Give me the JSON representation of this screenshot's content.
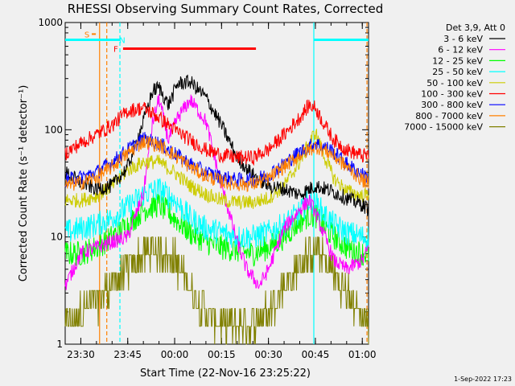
{
  "chart_data": {
    "type": "line",
    "title": "RHESSI Observing Summary Count Rates, Corrected",
    "xlabel": "Start Time (22-Nov-16 23:25:22)",
    "ylabel": "Corrected Count Rate (s⁻¹ detector⁻¹)",
    "yscale": "log",
    "ylim": [
      1,
      1000
    ],
    "xlim_minutes": [
      0,
      97
    ],
    "x_ticks": [
      {
        "label": "23:30",
        "minute": 5
      },
      {
        "label": "23:45",
        "minute": 20
      },
      {
        "label": "00:00",
        "minute": 35
      },
      {
        "label": "00:15",
        "minute": 50
      },
      {
        "label": "00:30",
        "minute": 65
      },
      {
        "label": "00:45",
        "minute": 80
      },
      {
        "label": "01:00",
        "minute": 95
      }
    ],
    "y_ticks": [
      {
        "label": "1",
        "value": 1
      },
      {
        "label": "10",
        "value": 10
      },
      {
        "label": "100",
        "value": 100
      },
      {
        "label": "1000",
        "value": 1000
      }
    ],
    "legend_title": "Det 3,9, Att 0",
    "legend_position": "right",
    "series": [
      {
        "name": "3 - 6 keV",
        "color": "#000000",
        "x": [
          0,
          5,
          10,
          15,
          20,
          25,
          28,
          30,
          33,
          36,
          40,
          45,
          50,
          55,
          60,
          65,
          70,
          75,
          80,
          85,
          90,
          95,
          97
        ],
        "y": [
          40,
          32,
          28,
          30,
          45,
          120,
          230,
          250,
          170,
          270,
          280,
          200,
          110,
          55,
          38,
          30,
          28,
          25,
          30,
          27,
          23,
          20,
          18
        ]
      },
      {
        "name": "6 - 12 keV",
        "color": "#ff00ff",
        "x": [
          0,
          5,
          10,
          15,
          20,
          25,
          28,
          30,
          33,
          36,
          40,
          45,
          50,
          55,
          58,
          62,
          65,
          70,
          75,
          78,
          80,
          83,
          86,
          90,
          95,
          97
        ],
        "y": [
          3.5,
          7,
          8,
          9,
          10,
          25,
          120,
          195,
          80,
          130,
          190,
          120,
          30,
          9,
          5,
          3.5,
          5,
          12,
          18,
          22,
          17,
          10,
          6,
          5,
          6,
          8
        ]
      },
      {
        "name": "12 - 25 keV",
        "color": "#00ff00",
        "x": [
          0,
          5,
          10,
          15,
          20,
          25,
          30,
          35,
          40,
          45,
          50,
          55,
          60,
          65,
          70,
          75,
          78,
          80,
          83,
          86,
          90,
          95,
          97
        ],
        "y": [
          7,
          7,
          8,
          10,
          13,
          18,
          20,
          15,
          11,
          9,
          8,
          7.5,
          7,
          8,
          10,
          14,
          16,
          16,
          12,
          10,
          8,
          7,
          7
        ]
      },
      {
        "name": "25 - 50 keV",
        "color": "#00ffff",
        "x": [
          0,
          5,
          10,
          15,
          20,
          25,
          30,
          35,
          40,
          45,
          50,
          55,
          60,
          65,
          70,
          75,
          78,
          80,
          83,
          86,
          90,
          95,
          97
        ],
        "y": [
          11,
          12,
          13,
          15,
          19,
          25,
          28,
          22,
          15,
          12,
          11,
          10,
          10,
          11,
          13,
          17,
          22,
          21,
          16,
          13,
          11,
          10,
          10
        ]
      },
      {
        "name": "50 - 100 keV",
        "color": "#cccc00",
        "x": [
          0,
          5,
          10,
          15,
          20,
          25,
          30,
          35,
          40,
          45,
          50,
          55,
          60,
          65,
          70,
          75,
          78,
          80,
          83,
          86,
          90,
          95,
          97
        ],
        "y": [
          22,
          22,
          24,
          30,
          42,
          50,
          50,
          40,
          30,
          25,
          22,
          21,
          21,
          23,
          30,
          50,
          75,
          95,
          55,
          35,
          27,
          24,
          25
        ]
      },
      {
        "name": "100 - 300 keV",
        "color": "#ff0000",
        "x": [
          0,
          5,
          10,
          15,
          20,
          25,
          30,
          35,
          40,
          45,
          50,
          55,
          60,
          65,
          70,
          75,
          78,
          80,
          83,
          86,
          90,
          95,
          97
        ],
        "y": [
          60,
          75,
          90,
          110,
          150,
          160,
          130,
          100,
          80,
          65,
          58,
          55,
          55,
          65,
          90,
          130,
          170,
          160,
          110,
          80,
          65,
          57,
          58
        ]
      },
      {
        "name": "300 - 800 keV",
        "color": "#0000ff",
        "x": [
          0,
          5,
          10,
          15,
          20,
          25,
          30,
          35,
          40,
          45,
          50,
          55,
          60,
          65,
          70,
          75,
          80,
          85,
          90,
          95,
          97
        ],
        "y": [
          34,
          36,
          40,
          50,
          65,
          82,
          75,
          60,
          48,
          40,
          36,
          34,
          34,
          38,
          48,
          62,
          75,
          65,
          48,
          38,
          36
        ]
      },
      {
        "name": "800 - 7000 keV",
        "color": "#ff8000",
        "x": [
          0,
          5,
          10,
          15,
          20,
          25,
          30,
          35,
          40,
          45,
          50,
          55,
          60,
          65,
          70,
          75,
          80,
          85,
          90,
          95,
          97
        ],
        "y": [
          30,
          32,
          36,
          45,
          60,
          78,
          72,
          58,
          45,
          37,
          33,
          31,
          31,
          35,
          45,
          58,
          70,
          60,
          45,
          34,
          32
        ]
      },
      {
        "name": "7000 - 15000 keV",
        "color": "#808000",
        "x": [
          0,
          5,
          10,
          15,
          20,
          25,
          30,
          35,
          40,
          45,
          50,
          55,
          60,
          65,
          70,
          75,
          80,
          85,
          90,
          95,
          97
        ],
        "y": [
          1.5,
          2,
          2.5,
          3.5,
          5,
          7,
          8,
          6,
          3.5,
          2,
          1.5,
          1.5,
          1.5,
          2,
          3.5,
          5.5,
          7.5,
          5,
          3,
          1.8,
          1.5
        ]
      }
    ],
    "annotations": [
      {
        "label": "S",
        "color": "#ff8000",
        "type": "bar",
        "x_start": 8.5,
        "x_end": 9.8,
        "y": 780
      },
      {
        "label": "N",
        "color": "#00ffff",
        "type": "bar",
        "x_start": 0,
        "x_end": 17.5,
        "y": 690
      },
      {
        "label": "N",
        "color": "#00ffff",
        "type": "bar",
        "x_start": 79.5,
        "x_end": 97,
        "y": 690
      },
      {
        "label": "F",
        "color": "#ff0000",
        "type": "bar",
        "x_start": 18.5,
        "x_end": 61,
        "y": 570
      }
    ],
    "vertical_markers": [
      {
        "x": 11,
        "color": "#ff8000",
        "style": "solid"
      },
      {
        "x": 13.3,
        "color": "#ff8000",
        "style": "dashed"
      },
      {
        "x": 17.5,
        "color": "#00ffff",
        "style": "dashed"
      },
      {
        "x": 79.5,
        "color": "#00ffff",
        "style": "solid"
      },
      {
        "x": 96.5,
        "color": "#ff8000",
        "style": "dashed"
      }
    ]
  },
  "footer": {
    "date_stamp": "1-Sep-2022 17:23"
  }
}
